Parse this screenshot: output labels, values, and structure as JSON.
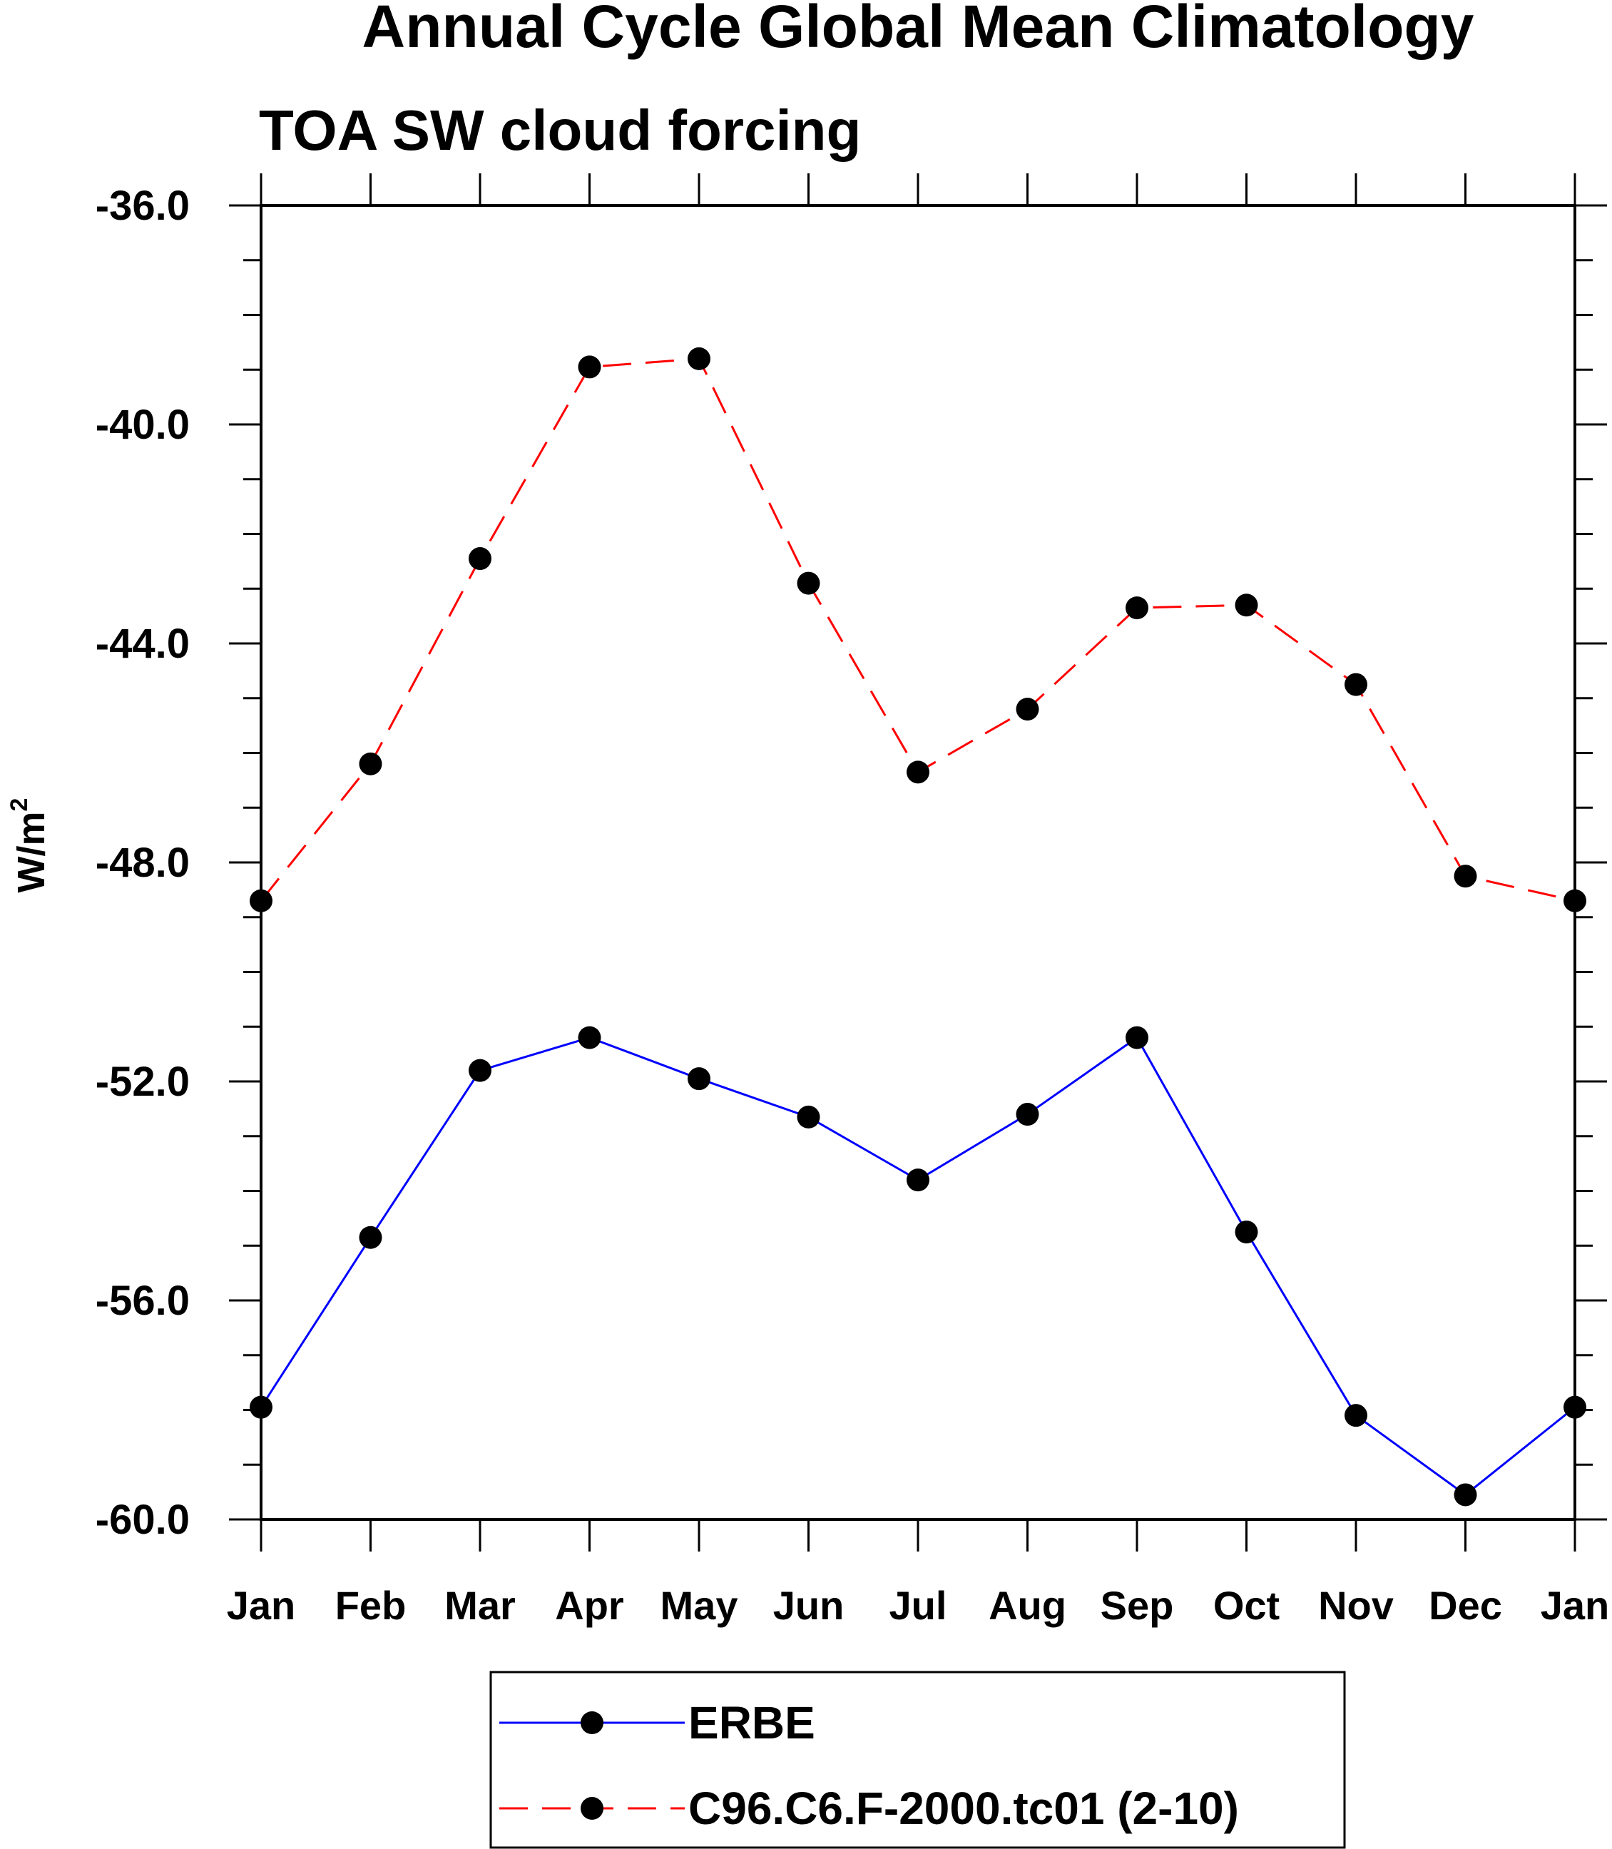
{
  "chart_data": {
    "type": "line",
    "title": "Annual Cycle Global Mean Climatology",
    "subtitle": "TOA SW cloud forcing",
    "xlabel": "",
    "ylabel": "W/m",
    "ylabel_sup": "2",
    "ylim": [
      -60.0,
      -36.0
    ],
    "yticks": [
      "-36.0",
      "-40.0",
      "-44.0",
      "-48.0",
      "-52.0",
      "-56.0",
      "-60.0"
    ],
    "ytick_values": [
      -36,
      -40,
      -44,
      -48,
      -52,
      -56,
      -60
    ],
    "categories": [
      "Jan",
      "Feb",
      "Mar",
      "Apr",
      "May",
      "Jun",
      "Jul",
      "Aug",
      "Sep",
      "Oct",
      "Nov",
      "Dec",
      "Jan"
    ],
    "legend_position": "bottom",
    "series": [
      {
        "name": "ERBE",
        "color": "#0000ff",
        "dash": "solid",
        "values": [
          -57.95,
          -54.85,
          -51.8,
          -51.2,
          -51.95,
          -52.65,
          -53.8,
          -52.6,
          -51.2,
          -54.75,
          -58.1,
          -59.55,
          -57.95
        ]
      },
      {
        "name": "C96.C6.F-2000.tc01 (2-10)",
        "color": "#ff0000",
        "dash": "dashed",
        "values": [
          -48.7,
          -46.2,
          -42.45,
          -38.95,
          -38.8,
          -42.9,
          -46.35,
          -45.2,
          -43.35,
          -43.3,
          -44.75,
          -48.25,
          -48.7
        ]
      }
    ]
  }
}
